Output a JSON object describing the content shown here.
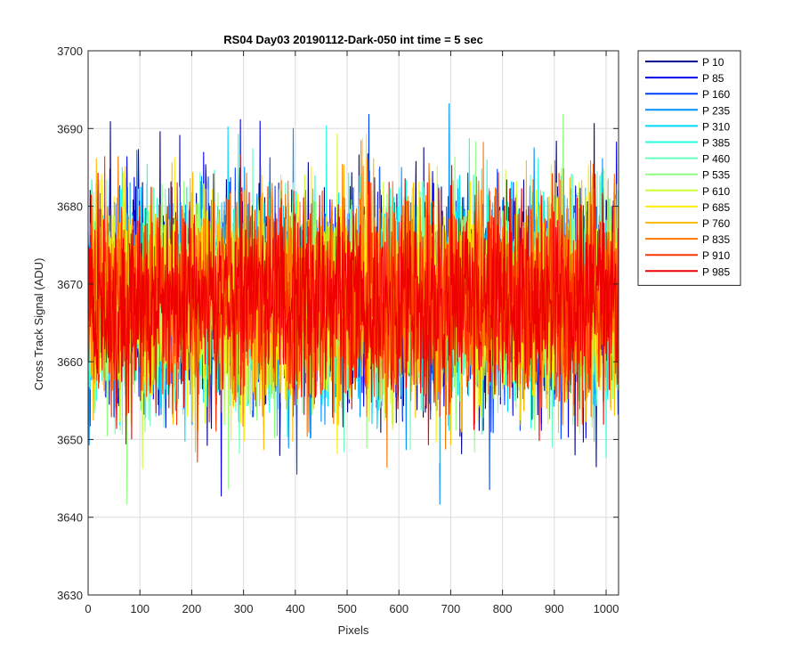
{
  "chart_data": {
    "type": "line",
    "title": "RS04 Day03 20190112-Dark-050 int time = 5 sec",
    "xlabel": "Pixels",
    "ylabel": "Cross Track Signal (ADU)",
    "xlim": [
      0,
      1024
    ],
    "ylim": [
      3630,
      3700
    ],
    "xticks": [
      0,
      100,
      200,
      300,
      400,
      500,
      600,
      700,
      800,
      900,
      1000
    ],
    "yticks": [
      3630,
      3640,
      3650,
      3660,
      3670,
      3680,
      3690,
      3700
    ],
    "grid": true,
    "legend_position": "outside-right",
    "series_profile": {
      "x_start": 0,
      "x_end": 1023,
      "mean": 3668,
      "std": 6.5,
      "min": 3638,
      "max": 3698
    },
    "series": [
      {
        "name": "P 10",
        "color": "#00008f"
      },
      {
        "name": "P 85",
        "color": "#0000ea"
      },
      {
        "name": "P 160",
        "color": "#0041ff"
      },
      {
        "name": "P 235",
        "color": "#0091ff"
      },
      {
        "name": "P 310",
        "color": "#00d9ff"
      },
      {
        "name": "P 385",
        "color": "#22ffdd"
      },
      {
        "name": "P 460",
        "color": "#66ffc0"
      },
      {
        "name": "P 535",
        "color": "#90ff80"
      },
      {
        "name": "P 610",
        "color": "#ccff33"
      },
      {
        "name": "P 685",
        "color": "#ffee00"
      },
      {
        "name": "P 760",
        "color": "#ffbb00"
      },
      {
        "name": "P 835",
        "color": "#ff7700"
      },
      {
        "name": "P 910",
        "color": "#ff3300"
      },
      {
        "name": "P 985",
        "color": "#ee0000"
      }
    ]
  }
}
